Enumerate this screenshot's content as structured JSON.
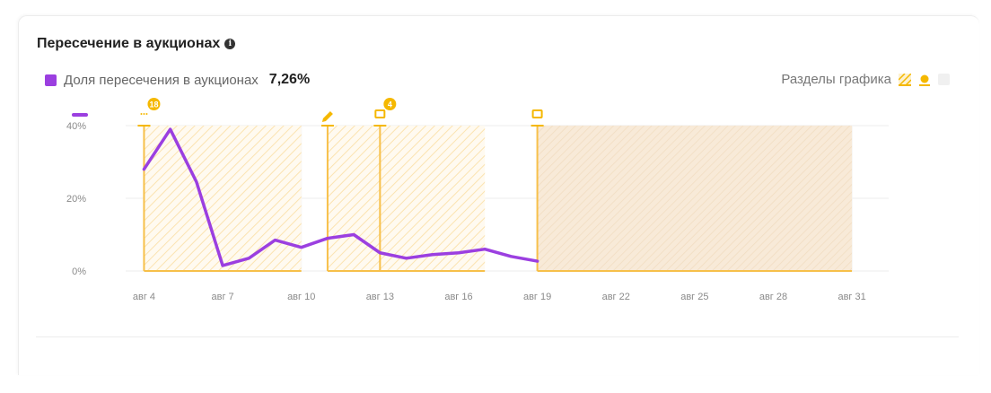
{
  "header": {
    "title": "Пересечение в аукционах",
    "info_icon": "info-icon"
  },
  "legend": {
    "label": "Доля пересечения в аукционах",
    "value": "7,26%",
    "color": "#9b3fe0"
  },
  "sections_control": {
    "label": "Разделы графика",
    "icons": [
      "striped-section-icon",
      "marker-icon",
      "gray-section-icon"
    ]
  },
  "colors": {
    "line": "#9b3fe0",
    "marker": "#f5b800",
    "band": "#f7c04a"
  },
  "chart_data": {
    "type": "line",
    "series": [
      {
        "name": "Доля пересечения в аукционах",
        "x": [
          4,
          5,
          6,
          7,
          8,
          9,
          10,
          11,
          12,
          13,
          14,
          15,
          16,
          17,
          18,
          19
        ],
        "values": [
          28,
          39,
          24.5,
          1.5,
          3.5,
          8.5,
          6.5,
          9,
          10,
          5,
          3.5,
          4.5,
          5,
          6,
          4,
          2.7
        ]
      }
    ],
    "xticks": [
      {
        "x": 4,
        "label": "авг 4"
      },
      {
        "x": 7,
        "label": "авг 7"
      },
      {
        "x": 10,
        "label": "авг 10"
      },
      {
        "x": 13,
        "label": "авг 13"
      },
      {
        "x": 16,
        "label": "авг 16"
      },
      {
        "x": 19,
        "label": "авг 19"
      },
      {
        "x": 22,
        "label": "авг 22"
      },
      {
        "x": 25,
        "label": "авг 25"
      },
      {
        "x": 28,
        "label": "авг 28"
      },
      {
        "x": 31,
        "label": "авг 31"
      }
    ],
    "yticks": [
      {
        "y": 0,
        "label": "0%"
      },
      {
        "y": 20,
        "label": "20%"
      },
      {
        "y": 40,
        "label": "40%"
      }
    ],
    "xlim": [
      3.3,
      32.4
    ],
    "ylim": [
      0,
      40
    ],
    "bands": [
      {
        "from": 4,
        "to": 10,
        "style": "striped"
      },
      {
        "from": 11,
        "to": 17,
        "style": "striped"
      },
      {
        "from": 19,
        "to": 31,
        "style": "shaded"
      }
    ],
    "markers": [
      {
        "x": 4,
        "icon": "dots-icon",
        "badge": "18"
      },
      {
        "x": 11,
        "icon": "pencil-icon",
        "badge": ""
      },
      {
        "x": 13,
        "icon": "screen-icon",
        "badge": "4"
      },
      {
        "x": 19,
        "icon": "screen-icon",
        "badge": ""
      }
    ]
  }
}
